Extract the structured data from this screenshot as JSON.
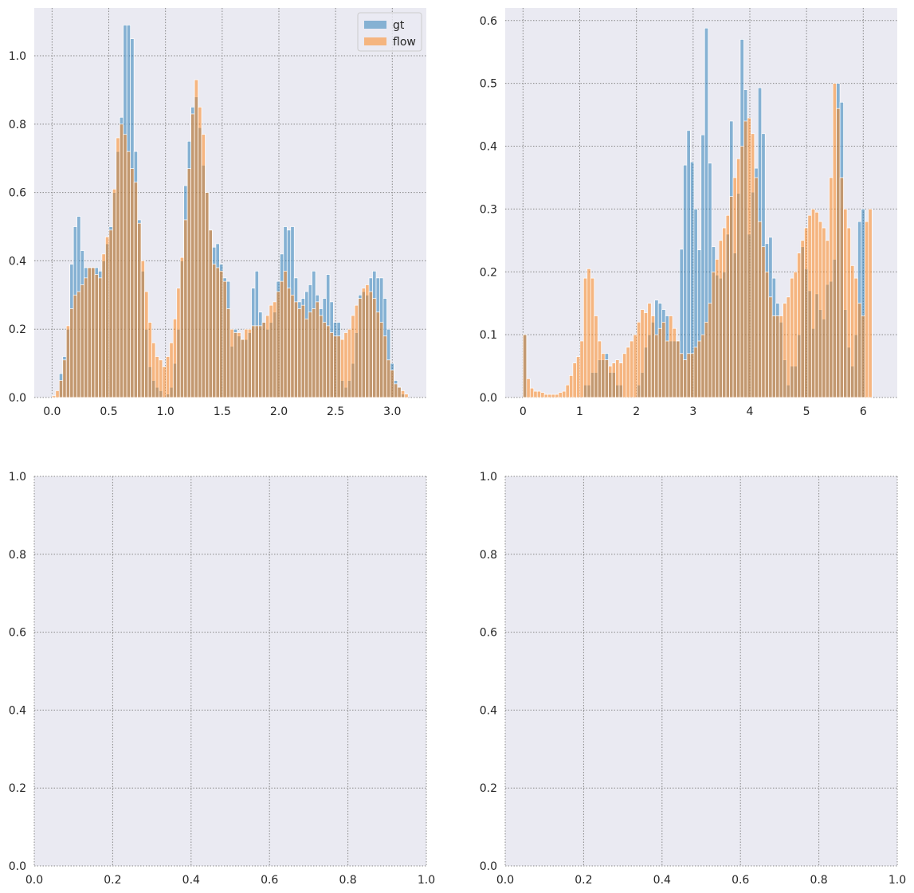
{
  "colors": {
    "gt": "#1f77b4",
    "flow": "#ff7f0e",
    "plot_bg": "#eaeaf2",
    "grid": "#888888"
  },
  "chart_data": [
    {
      "type": "bar",
      "xlim": [
        -0.157,
        3.3
      ],
      "ylim": [
        0,
        1.14
      ],
      "xticks": [
        0.0,
        0.5,
        1.0,
        1.5,
        2.0,
        2.5,
        3.0
      ],
      "xtick_labels": [
        "0.0",
        "0.5",
        "1.0",
        "1.5",
        "2.0",
        "2.5",
        "3.0"
      ],
      "yticks": [
        0.0,
        0.2,
        0.4,
        0.6,
        0.8,
        1.0
      ],
      "ytick_labels": [
        "0.0",
        "0.2",
        "0.4",
        "0.6",
        "0.8",
        "1.0"
      ],
      "grid": true,
      "legend": {
        "position": "top-right",
        "entries": [
          "gt",
          "flow"
        ]
      },
      "bin_start": 0.0,
      "bin_width": 0.0314,
      "series": [
        {
          "name": "gt",
          "values": [
            0,
            0,
            0.07,
            0.12,
            0.2,
            0.39,
            0.5,
            0.53,
            0.43,
            0.38,
            0.38,
            0.38,
            0.38,
            0.37,
            0.4,
            0.45,
            0.5,
            0.6,
            0.72,
            0.82,
            1.09,
            1.09,
            1.05,
            0.72,
            0.52,
            0.37,
            0.2,
            0.09,
            0.05,
            0.03,
            0.02,
            0,
            0.01,
            0.03,
            0.1,
            0.2,
            0.4,
            0.62,
            0.75,
            0.85,
            0.88,
            0.79,
            0.68,
            0.6,
            0.49,
            0.44,
            0.45,
            0.39,
            0.35,
            0.34,
            0.15,
            0.2,
            0.18,
            0.17,
            0.17,
            0.19,
            0.32,
            0.37,
            0.25,
            0.22,
            0.2,
            0.22,
            0.25,
            0.34,
            0.42,
            0.5,
            0.49,
            0.5,
            0.35,
            0.28,
            0.29,
            0.31,
            0.33,
            0.37,
            0.3,
            0.26,
            0.29,
            0.36,
            0.28,
            0.22,
            0.22,
            0.05,
            0.03,
            0.05,
            0.1,
            0.19,
            0.3,
            0.31,
            0.3,
            0.35,
            0.37,
            0.35,
            0.35,
            0.29,
            0.2,
            0.1,
            0.05,
            0.03,
            0.01,
            0
          ]
        },
        {
          "name": "flow",
          "values": [
            0.005,
            0.02,
            0.05,
            0.11,
            0.21,
            0.26,
            0.3,
            0.31,
            0.33,
            0.35,
            0.38,
            0.38,
            0.36,
            0.35,
            0.42,
            0.47,
            0.49,
            0.61,
            0.76,
            0.8,
            0.77,
            0.72,
            0.67,
            0.63,
            0.51,
            0.4,
            0.31,
            0.22,
            0.16,
            0.12,
            0.11,
            0.09,
            0.12,
            0.16,
            0.23,
            0.32,
            0.41,
            0.52,
            0.67,
            0.83,
            0.93,
            0.85,
            0.77,
            0.6,
            0.49,
            0.39,
            0.38,
            0.37,
            0.34,
            0.26,
            0.2,
            0.19,
            0.19,
            0.17,
            0.2,
            0.2,
            0.21,
            0.21,
            0.21,
            0.22,
            0.24,
            0.27,
            0.28,
            0.31,
            0.34,
            0.37,
            0.32,
            0.3,
            0.28,
            0.26,
            0.27,
            0.23,
            0.25,
            0.26,
            0.28,
            0.24,
            0.22,
            0.21,
            0.19,
            0.18,
            0.18,
            0.17,
            0.19,
            0.2,
            0.24,
            0.27,
            0.29,
            0.32,
            0.33,
            0.31,
            0.29,
            0.25,
            0.22,
            0.18,
            0.11,
            0.08,
            0.04,
            0.03,
            0.02,
            0.01
          ]
        }
      ]
    },
    {
      "type": "bar",
      "xlim": [
        -0.314,
        6.6
      ],
      "ylim": [
        0,
        0.62
      ],
      "xticks": [
        0,
        1,
        2,
        3,
        4,
        5,
        6
      ],
      "xtick_labels": [
        "0",
        "1",
        "2",
        "3",
        "4",
        "5",
        "6"
      ],
      "yticks": [
        0.0,
        0.1,
        0.2,
        0.3,
        0.4,
        0.5,
        0.6
      ],
      "ytick_labels": [
        "0.0",
        "0.1",
        "0.2",
        "0.3",
        "0.4",
        "0.5",
        "0.6"
      ],
      "grid": true,
      "bin_start": 0.0,
      "bin_width": 0.0628,
      "series": [
        {
          "name": "gt",
          "values": [
            0.1,
            0,
            0,
            0,
            0,
            0,
            0,
            0,
            0,
            0,
            0,
            0,
            0,
            0,
            0,
            0,
            0,
            0.02,
            0.02,
            0.04,
            0.04,
            0.06,
            0.06,
            0.07,
            0.04,
            0.04,
            0.02,
            0.02,
            0,
            0,
            0,
            0,
            0.02,
            0.04,
            0.08,
            0.1,
            0.12,
            0.155,
            0.15,
            0.14,
            0.13,
            0.09,
            0.09,
            0.09,
            0.236,
            0.37,
            0.425,
            0.375,
            0.3,
            0.235,
            0.418,
            0.588,
            0.373,
            0.24,
            0.195,
            0.19,
            0.2,
            0.26,
            0.44,
            0.23,
            0.325,
            0.57,
            0.49,
            0.26,
            0.327,
            0.365,
            0.493,
            0.42,
            0.245,
            0.255,
            0.19,
            0.15,
            0.12,
            0.06,
            0.02,
            0.05,
            0.05,
            0.1,
            0.24,
            0.205,
            0.17,
            0.11,
            0.165,
            0.14,
            0.125,
            0.18,
            0.185,
            0.22,
            0.5,
            0.47,
            0.14,
            0.08,
            0.05,
            0.1,
            0.28,
            0.3
          ]
        },
        {
          "name": "flow",
          "values": [
            0.1,
            0.03,
            0.015,
            0.01,
            0.01,
            0.008,
            0.005,
            0.005,
            0.005,
            0.005,
            0.008,
            0.01,
            0.02,
            0.035,
            0.055,
            0.065,
            0.09,
            0.19,
            0.205,
            0.19,
            0.13,
            0.09,
            0.07,
            0.06,
            0.05,
            0.055,
            0.06,
            0.055,
            0.07,
            0.08,
            0.09,
            0.1,
            0.12,
            0.14,
            0.135,
            0.15,
            0.13,
            0.1,
            0.11,
            0.12,
            0.09,
            0.13,
            0.11,
            0.09,
            0.07,
            0.06,
            0.07,
            0.07,
            0.08,
            0.09,
            0.1,
            0.12,
            0.15,
            0.2,
            0.22,
            0.25,
            0.27,
            0.29,
            0.32,
            0.35,
            0.38,
            0.4,
            0.44,
            0.445,
            0.42,
            0.35,
            0.28,
            0.24,
            0.2,
            0.16,
            0.13,
            0.13,
            0.13,
            0.15,
            0.16,
            0.19,
            0.2,
            0.23,
            0.25,
            0.27,
            0.29,
            0.3,
            0.295,
            0.28,
            0.27,
            0.25,
            0.35,
            0.5,
            0.46,
            0.35,
            0.3,
            0.27,
            0.21,
            0.19,
            0.15,
            0.13,
            0.28,
            0.3
          ]
        }
      ]
    },
    {
      "type": "bar",
      "xlim": [
        0,
        1
      ],
      "ylim": [
        0,
        1
      ],
      "xticks": [
        0.0,
        0.2,
        0.4,
        0.6,
        0.8,
        1.0
      ],
      "xtick_labels": [
        "0.0",
        "0.2",
        "0.4",
        "0.6",
        "0.8",
        "1.0"
      ],
      "yticks": [
        0.0,
        0.2,
        0.4,
        0.6,
        0.8,
        1.0
      ],
      "ytick_labels": [
        "0.0",
        "0.2",
        "0.4",
        "0.6",
        "0.8",
        "1.0"
      ],
      "grid": true,
      "series": []
    },
    {
      "type": "bar",
      "xlim": [
        0,
        1
      ],
      "ylim": [
        0,
        1
      ],
      "xticks": [
        0.0,
        0.2,
        0.4,
        0.6,
        0.8,
        1.0
      ],
      "xtick_labels": [
        "0.0",
        "0.2",
        "0.4",
        "0.6",
        "0.8",
        "1.0"
      ],
      "yticks": [
        0.0,
        0.2,
        0.4,
        0.6,
        0.8,
        1.0
      ],
      "ytick_labels": [
        "0.0",
        "0.2",
        "0.4",
        "0.6",
        "0.8",
        "1.0"
      ],
      "grid": true,
      "series": []
    }
  ]
}
